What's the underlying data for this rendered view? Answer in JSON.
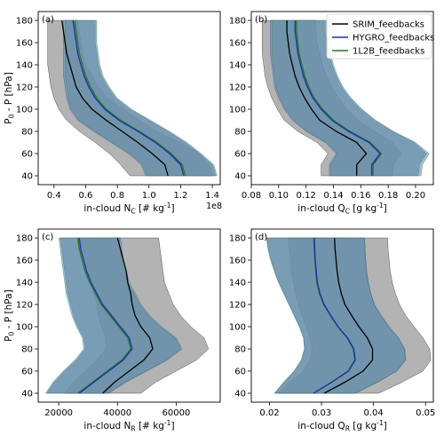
{
  "colors": {
    "srim": "#000000",
    "hygro": "#1f2fb4",
    "l2b": "#1f7a1f",
    "srim_band": "#a6a6a6",
    "hygro_band": "#7b9bb0",
    "l2b_band": "#5c8aa8"
  },
  "legend": {
    "placement": "top-right of panel (b)",
    "entries": [
      "SRIM_feedbacks",
      "HYGRO_feedbacks",
      "1L2B_feedbacks"
    ]
  },
  "chart_data": [
    {
      "type": "line",
      "panel_label": "(a)",
      "xlabel": "in-cloud N",
      "xlabel_sub": "C",
      "xlabel_unit": " [# kg",
      "xlabel_sup": "-1",
      "xlabel_end": "]",
      "ylabel": "P",
      "ylabel_sub": "0",
      "ylabel_rest": " - P [hPa]",
      "x_multiplier": "1e8",
      "xlim": [
        0.3,
        1.45
      ],
      "ylim": [
        32,
        188
      ],
      "xticks": [
        "0.4",
        "0.6",
        "0.8",
        "1.0",
        "1.2",
        "1.4"
      ],
      "xtick_values": [
        0.4,
        0.6,
        0.8,
        1.0,
        1.2,
        1.4
      ],
      "yticks": [
        "40",
        "60",
        "80",
        "100",
        "120",
        "140",
        "160",
        "180"
      ],
      "ytick_values": [
        40,
        60,
        80,
        100,
        120,
        140,
        160,
        180
      ],
      "y": [
        40,
        50,
        60,
        70,
        80,
        90,
        100,
        110,
        120,
        130,
        140,
        150,
        160,
        170,
        180
      ],
      "series": [
        {
          "key": "srim",
          "mean": [
            1.12,
            1.1,
            1.02,
            0.93,
            0.83,
            0.73,
            0.64,
            0.58,
            0.54,
            0.52,
            0.5,
            0.48,
            0.47,
            0.46,
            0.45
          ],
          "lower": [
            0.88,
            0.82,
            0.75,
            0.66,
            0.56,
            0.48,
            0.43,
            0.4,
            0.38,
            0.37,
            0.36,
            0.36,
            0.36,
            0.36,
            0.36
          ],
          "upper": [
            1.4,
            1.38,
            1.32,
            1.2,
            1.05,
            0.94,
            0.84,
            0.74,
            0.68,
            0.64,
            0.6,
            0.58,
            0.57,
            0.56,
            0.55
          ]
        },
        {
          "key": "hygro",
          "mean": [
            1.22,
            1.2,
            1.13,
            1.04,
            0.93,
            0.81,
            0.72,
            0.66,
            0.62,
            0.59,
            0.57,
            0.55,
            0.54,
            0.53,
            0.52
          ],
          "lower": [
            0.98,
            0.95,
            0.87,
            0.76,
            0.65,
            0.55,
            0.5,
            0.48,
            0.47,
            0.46,
            0.46,
            0.46,
            0.46,
            0.46,
            0.46
          ],
          "upper": [
            1.42,
            1.4,
            1.32,
            1.23,
            1.12,
            1.0,
            0.88,
            0.79,
            0.74,
            0.7,
            0.68,
            0.67,
            0.66,
            0.66,
            0.66
          ]
        },
        {
          "key": "l2b",
          "mean": [
            1.23,
            1.21,
            1.14,
            1.05,
            0.94,
            0.82,
            0.73,
            0.67,
            0.63,
            0.6,
            0.58,
            0.56,
            0.55,
            0.54,
            0.53
          ],
          "lower": [
            0.99,
            0.96,
            0.88,
            0.77,
            0.66,
            0.56,
            0.51,
            0.49,
            0.48,
            0.47,
            0.47,
            0.47,
            0.47,
            0.47,
            0.47
          ],
          "upper": [
            1.43,
            1.41,
            1.33,
            1.24,
            1.13,
            1.01,
            0.89,
            0.8,
            0.75,
            0.71,
            0.69,
            0.68,
            0.67,
            0.67,
            0.67
          ]
        }
      ]
    },
    {
      "type": "line",
      "panel_label": "(b)",
      "xlabel": "in-cloud Q",
      "xlabel_sub": "C",
      "xlabel_unit": " [g kg",
      "xlabel_sup": "-1",
      "xlabel_end": "]",
      "ylabel": "",
      "ylabel_sub": "",
      "ylabel_rest": "",
      "x_multiplier": "",
      "xlim": [
        0.08,
        0.213
      ],
      "ylim": [
        32,
        188
      ],
      "xticks": [
        "0.08",
        "0.10",
        "0.12",
        "0.14",
        "0.16",
        "0.18",
        "0.20"
      ],
      "xtick_values": [
        0.08,
        0.1,
        0.12,
        0.14,
        0.16,
        0.18,
        0.2
      ],
      "yticks": [
        "40",
        "60",
        "80",
        "100",
        "120",
        "140",
        "160",
        "180"
      ],
      "ytick_values": [
        40,
        60,
        80,
        100,
        120,
        140,
        160,
        180
      ],
      "y": [
        40,
        50,
        60,
        70,
        80,
        90,
        100,
        110,
        120,
        130,
        140,
        150,
        160,
        170,
        180
      ],
      "series": [
        {
          "key": "srim",
          "mean": [
            0.157,
            0.157,
            0.164,
            0.157,
            0.142,
            0.13,
            0.124,
            0.119,
            0.115,
            0.112,
            0.11,
            0.108,
            0.107,
            0.106,
            0.106
          ],
          "lower": [
            0.131,
            0.131,
            0.136,
            0.128,
            0.114,
            0.104,
            0.099,
            0.095,
            0.092,
            0.09,
            0.089,
            0.088,
            0.088,
            0.088,
            0.088
          ],
          "upper": [
            0.183,
            0.184,
            0.19,
            0.183,
            0.17,
            0.158,
            0.15,
            0.144,
            0.139,
            0.135,
            0.132,
            0.13,
            0.128,
            0.127,
            0.127
          ]
        },
        {
          "key": "hygro",
          "mean": [
            0.168,
            0.168,
            0.174,
            0.166,
            0.151,
            0.139,
            0.131,
            0.125,
            0.121,
            0.118,
            0.116,
            0.114,
            0.113,
            0.112,
            0.112
          ],
          "lower": [
            0.137,
            0.137,
            0.142,
            0.134,
            0.12,
            0.11,
            0.104,
            0.1,
            0.097,
            0.096,
            0.095,
            0.094,
            0.094,
            0.094,
            0.094
          ],
          "upper": [
            0.202,
            0.203,
            0.208,
            0.199,
            0.183,
            0.17,
            0.16,
            0.152,
            0.146,
            0.142,
            0.139,
            0.137,
            0.135,
            0.134,
            0.134
          ]
        },
        {
          "key": "l2b",
          "mean": [
            0.169,
            0.169,
            0.175,
            0.167,
            0.152,
            0.14,
            0.132,
            0.126,
            0.122,
            0.119,
            0.117,
            0.115,
            0.114,
            0.113,
            0.113
          ],
          "lower": [
            0.138,
            0.138,
            0.143,
            0.135,
            0.121,
            0.111,
            0.105,
            0.101,
            0.098,
            0.097,
            0.096,
            0.095,
            0.095,
            0.095,
            0.095
          ],
          "upper": [
            0.204,
            0.205,
            0.21,
            0.2,
            0.184,
            0.171,
            0.161,
            0.153,
            0.147,
            0.143,
            0.14,
            0.138,
            0.136,
            0.135,
            0.135
          ]
        }
      ]
    },
    {
      "type": "line",
      "panel_label": "(c)",
      "xlabel": "in-cloud N",
      "xlabel_sub": "R",
      "xlabel_unit": " [# kg",
      "xlabel_sup": "-1",
      "xlabel_end": "]",
      "ylabel": "P",
      "ylabel_sub": "0",
      "ylabel_rest": " - P [hPa]",
      "x_multiplier": "",
      "xlim": [
        13000,
        75000
      ],
      "ylim": [
        32,
        188
      ],
      "xticks": [
        "20000",
        "40000",
        "60000"
      ],
      "xtick_values": [
        20000,
        40000,
        60000
      ],
      "yticks": [
        "40",
        "60",
        "80",
        "100",
        "120",
        "140",
        "160",
        "180"
      ],
      "ytick_values": [
        40,
        60,
        80,
        100,
        120,
        140,
        160,
        180
      ],
      "y": [
        40,
        50,
        60,
        70,
        80,
        90,
        100,
        110,
        120,
        130,
        140,
        150,
        160,
        170,
        180
      ],
      "series": [
        {
          "key": "srim",
          "mean": [
            35000,
            39000,
            44000,
            49000,
            52000,
            51000,
            48000,
            46000,
            45000,
            44500,
            43500,
            43000,
            42000,
            41000,
            40000
          ],
          "lower": [
            22000,
            25000,
            29000,
            33000,
            36000,
            36000,
            34500,
            33500,
            33000,
            32000,
            31000,
            30000,
            29000,
            28000,
            27000
          ],
          "upper": [
            48000,
            53000,
            60000,
            67000,
            71000,
            69500,
            65000,
            61500,
            59000,
            57500,
            56000,
            55500,
            55000,
            54500,
            54000
          ]
        },
        {
          "key": "hygro",
          "mean": [
            27000,
            32000,
            37000,
            42000,
            45000,
            44000,
            41000,
            38000,
            35000,
            33000,
            31000,
            29500,
            28500,
            27500,
            27000
          ],
          "lower": [
            16000,
            18500,
            22000,
            26000,
            29000,
            28500,
            26500,
            25000,
            24000,
            23000,
            22500,
            22000,
            21500,
            21000,
            20500
          ],
          "upper": [
            37000,
            43000,
            50000,
            57000,
            62000,
            60000,
            55000,
            51000,
            48000,
            46000,
            44000,
            43000,
            42000,
            41500,
            41000
          ]
        },
        {
          "key": "l2b",
          "mean": [
            26500,
            31500,
            36500,
            41500,
            44500,
            43500,
            40500,
            37500,
            34500,
            32500,
            30500,
            29000,
            28000,
            27000,
            26500
          ],
          "lower": [
            15500,
            18000,
            21500,
            25500,
            28500,
            28000,
            26000,
            24500,
            23500,
            22500,
            22000,
            21500,
            21000,
            20500,
            20000
          ],
          "upper": [
            36500,
            42500,
            49500,
            56500,
            61500,
            59500,
            54500,
            50500,
            47500,
            45500,
            43500,
            42500,
            41500,
            41000,
            40500
          ]
        }
      ]
    },
    {
      "type": "line",
      "panel_label": "(d)",
      "xlabel": "in-cloud Q",
      "xlabel_sub": "R",
      "xlabel_unit": " [g kg",
      "xlabel_sup": "-1",
      "xlabel_end": "]",
      "ylabel": "",
      "ylabel_sub": "",
      "ylabel_rest": "",
      "x_multiplier": "",
      "xlim": [
        0.0165,
        0.0515
      ],
      "ylim": [
        32,
        188
      ],
      "xticks": [
        "0.02",
        "0.03",
        "0.04",
        "0.05"
      ],
      "xtick_values": [
        0.02,
        0.03,
        0.04,
        0.05
      ],
      "yticks": [
        "40",
        "60",
        "80",
        "100",
        "120",
        "140",
        "160",
        "180"
      ],
      "ytick_values": [
        40,
        60,
        80,
        100,
        120,
        140,
        160,
        180
      ],
      "y": [
        40,
        50,
        60,
        70,
        80,
        90,
        100,
        110,
        120,
        130,
        140,
        150,
        160,
        170,
        180
      ],
      "series": [
        {
          "key": "srim",
          "mean": [
            0.0305,
            0.0345,
            0.038,
            0.0398,
            0.0398,
            0.0388,
            0.0372,
            0.0358,
            0.0345,
            0.0338,
            0.0333,
            0.033,
            0.0328,
            0.0326,
            0.0325
          ],
          "lower": [
            0.0215,
            0.024,
            0.0265,
            0.0278,
            0.0282,
            0.0278,
            0.027,
            0.0262,
            0.0255,
            0.025,
            0.0246,
            0.0242,
            0.024,
            0.0238,
            0.0236
          ],
          "upper": [
            0.041,
            0.0455,
            0.0495,
            0.051,
            0.0508,
            0.0495,
            0.0478,
            0.0462,
            0.045,
            0.0442,
            0.0436,
            0.0432,
            0.043,
            0.0428,
            0.0427
          ]
        },
        {
          "key": "hygro",
          "mean": [
            0.0285,
            0.032,
            0.0352,
            0.0365,
            0.0362,
            0.035,
            0.0332,
            0.0318,
            0.0305,
            0.0297,
            0.0292,
            0.029,
            0.0288,
            0.0287,
            0.0286
          ],
          "lower": [
            0.021,
            0.0228,
            0.0248,
            0.0262,
            0.0268,
            0.0266,
            0.0258,
            0.0248,
            0.0238,
            0.0228,
            0.0218,
            0.021,
            0.0203,
            0.0198,
            0.0195
          ],
          "upper": [
            0.0365,
            0.0408,
            0.0445,
            0.0462,
            0.046,
            0.0448,
            0.043,
            0.0415,
            0.0402,
            0.0395,
            0.039,
            0.0387,
            0.0385,
            0.0384,
            0.0383
          ]
        },
        {
          "key": "l2b",
          "mean": [
            0.0284,
            0.0319,
            0.0351,
            0.0364,
            0.0361,
            0.0349,
            0.0331,
            0.0317,
            0.0304,
            0.0296,
            0.0291,
            0.0289,
            0.0287,
            0.0286,
            0.0285
          ],
          "lower": [
            0.0209,
            0.0227,
            0.0247,
            0.0261,
            0.0267,
            0.0265,
            0.0257,
            0.0247,
            0.0237,
            0.0227,
            0.0217,
            0.0209,
            0.0202,
            0.0197,
            0.0194
          ],
          "upper": [
            0.0364,
            0.0407,
            0.0444,
            0.0461,
            0.0459,
            0.0447,
            0.0429,
            0.0414,
            0.0401,
            0.0394,
            0.0389,
            0.0386,
            0.0384,
            0.0383,
            0.0382
          ]
        }
      ]
    }
  ]
}
